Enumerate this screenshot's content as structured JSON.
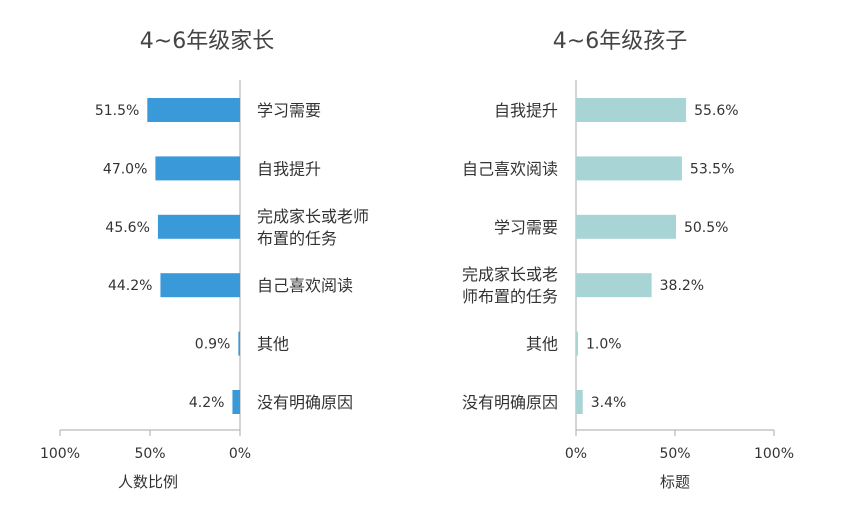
{
  "colors": {
    "left_bar": "#3a9ad9",
    "right_bar": "#a8d4d6",
    "axis": "#aaaaaa",
    "text": "#333333",
    "title": "#444444"
  },
  "chart_data": [
    {
      "type": "bar",
      "orientation": "horizontal",
      "direction": "right-to-left",
      "title": "4~6年级家长",
      "xlabel": "人数比例",
      "xlim": [
        0,
        100
      ],
      "xticks": [
        "100%",
        "50%",
        "0%"
      ],
      "categories": [
        [
          "学习需要"
        ],
        [
          "自我提升"
        ],
        [
          "完成家长或老师",
          "布置的任务"
        ],
        [
          "自己喜欢阅读"
        ],
        [
          "其他"
        ],
        [
          "没有明确原因"
        ]
      ],
      "values": [
        51.5,
        47.0,
        45.6,
        44.2,
        0.9,
        4.2
      ],
      "value_labels": [
        "51.5%",
        "47.0%",
        "45.6%",
        "44.2%",
        "0.9%",
        "4.2%"
      ]
    },
    {
      "type": "bar",
      "orientation": "horizontal",
      "direction": "left-to-right",
      "title": "4~6年级孩子",
      "xlabel": "标题",
      "xlim": [
        0,
        100
      ],
      "xticks": [
        "0%",
        "50%",
        "100%"
      ],
      "categories": [
        [
          "自我提升"
        ],
        [
          "自己喜欢阅读"
        ],
        [
          "学习需要"
        ],
        [
          "完成家长或老",
          "师布置的任务"
        ],
        [
          "其他"
        ],
        [
          "没有明确原因"
        ]
      ],
      "values": [
        55.6,
        53.5,
        50.5,
        38.2,
        1.0,
        3.4
      ],
      "value_labels": [
        "55.6%",
        "53.5%",
        "50.5%",
        "38.2%",
        "1.0%",
        "3.4%"
      ]
    }
  ]
}
